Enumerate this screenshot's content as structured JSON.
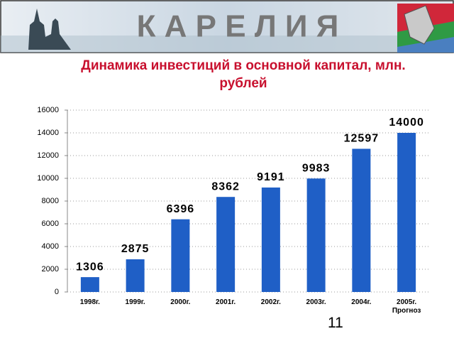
{
  "header": {
    "title": "К А Р Е Л И Я"
  },
  "page_number": "11",
  "chart_data": {
    "type": "bar",
    "title": "Динамика инвестиций в основной капитал, млн. рублей",
    "categories": [
      "1998г.",
      "1999г.",
      "2000г.",
      "2001г.",
      "2002г.",
      "2003г.",
      "2004г.",
      "2005г. Прогноз"
    ],
    "values": [
      1306,
      2875,
      6396,
      8362,
      9191,
      9983,
      12597,
      14000
    ],
    "color": "#1f5fc6",
    "ylim": [
      0,
      16000
    ],
    "yticks": [
      0,
      2000,
      4000,
      6000,
      8000,
      10000,
      12000,
      14000,
      16000
    ],
    "grid": true
  }
}
